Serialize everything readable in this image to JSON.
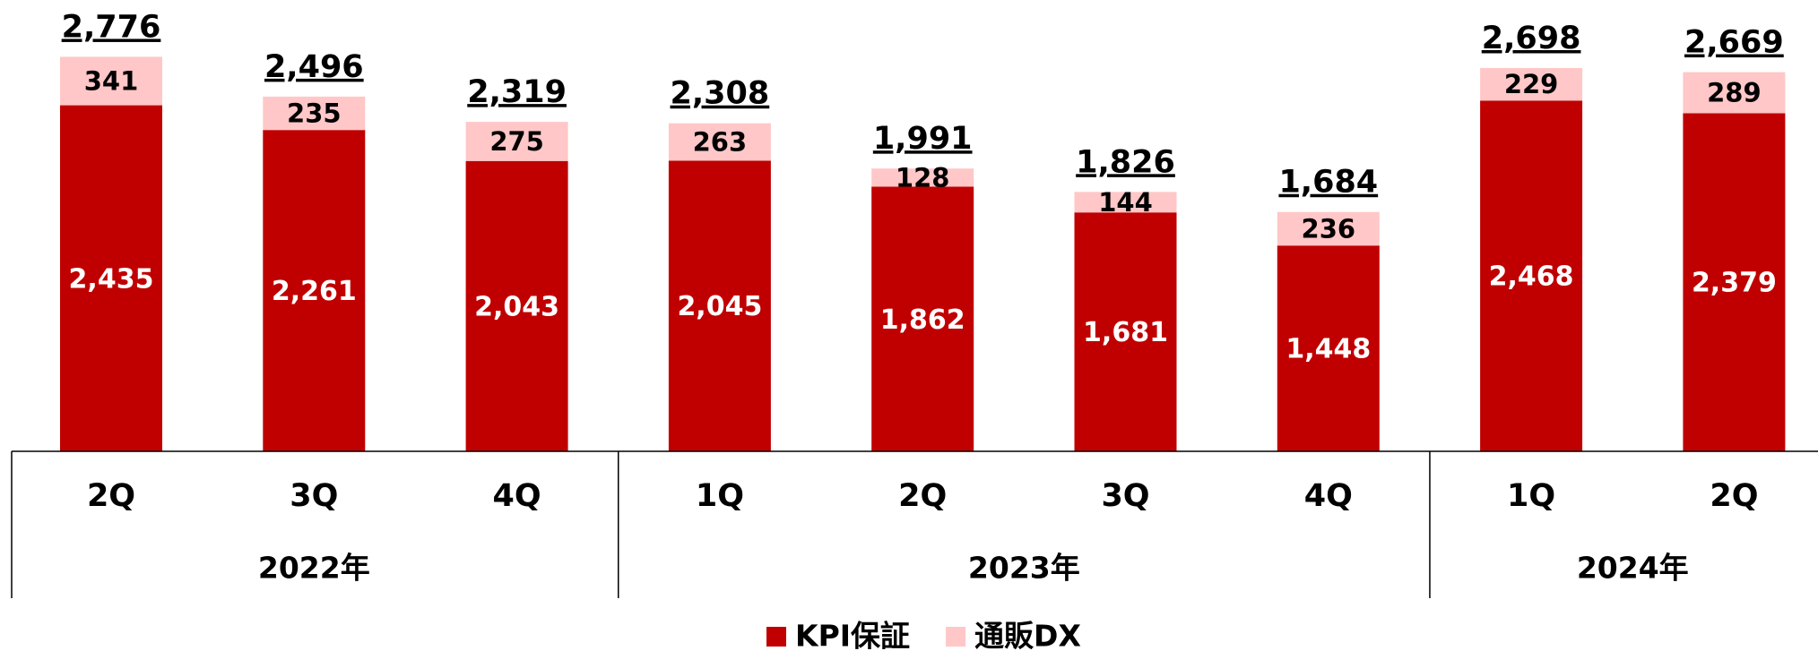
{
  "chart_data": {
    "type": "stacked_bar",
    "categories": [
      "2Q",
      "3Q",
      "4Q",
      "1Q",
      "2Q",
      "3Q",
      "4Q",
      "1Q",
      "2Q"
    ],
    "category_groups": [
      "2022年",
      "2022年",
      "2022年",
      "2023年",
      "2023年",
      "2023年",
      "2023年",
      "2024年",
      "2024年"
    ],
    "series": [
      {
        "name": "KPI保証",
        "color": "#c00000",
        "values": [
          2435,
          2261,
          2043,
          2045,
          1862,
          1681,
          1448,
          2468,
          2379
        ],
        "value_labels": [
          "2,435",
          "2,261",
          "2,043",
          "2,045",
          "1,862",
          "1,681",
          "1,448",
          "2,468",
          "2,379"
        ]
      },
      {
        "name": "通販DX",
        "color": "#ffc7c7",
        "values": [
          341,
          235,
          275,
          263,
          128,
          144,
          236,
          229,
          289
        ],
        "value_labels": [
          "341",
          "235",
          "275",
          "263",
          "128",
          "144",
          "236",
          "229",
          "289"
        ]
      }
    ],
    "totals": [
      2776,
      2496,
      2319,
      2308,
      1991,
      1826,
      1684,
      2698,
      2669
    ],
    "total_labels": [
      "2,776",
      "2,496",
      "2,319",
      "2,308",
      "1,991",
      "1,826",
      "1,684",
      "2,698",
      "2,669"
    ]
  }
}
